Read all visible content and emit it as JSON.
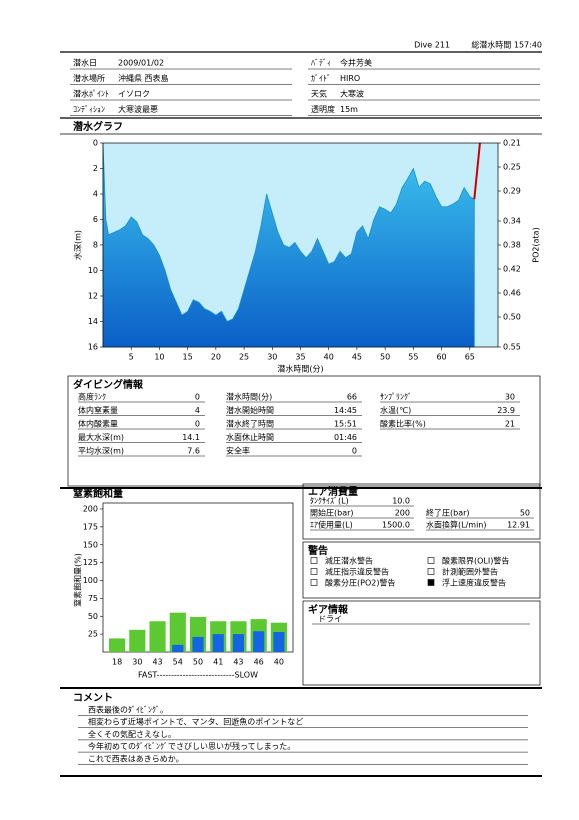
{
  "header": {
    "dive": "Dive 211",
    "total_time": "総潜水時間 157:40"
  },
  "info": {
    "rows": [
      [
        {
          "label": "潜水日",
          "value": "2009/01/02"
        },
        {
          "label": "ﾊﾞﾃﾞｨ",
          "value": "今井芳美"
        }
      ],
      [
        {
          "label": "潜水場所",
          "value": "沖縄県 西表島"
        },
        {
          "label": "ｶﾞｲﾄﾞ",
          "value": "HIRO"
        }
      ],
      [
        {
          "label": "潜水ﾎﾟｲﾝﾄ",
          "value": "イソロク"
        },
        {
          "label": "天気",
          "value": "大寒波"
        }
      ],
      [
        {
          "label": "ｺﾝﾃﾞｨｼｮﾝ",
          "value": "大寒波最悪"
        },
        {
          "label": "透明度",
          "value": "15m"
        }
      ]
    ]
  },
  "chart_data": [
    {
      "type": "area",
      "title": "潜水グラフ",
      "xlabel": "潜水時間(分)",
      "ylabel": "水深(m)",
      "y2label": "PO2(ata)",
      "xlim": [
        0,
        70
      ],
      "xticks": [
        5,
        10,
        15,
        20,
        25,
        30,
        35,
        40,
        45,
        50,
        55,
        60,
        65
      ],
      "ylim": [
        16,
        0
      ],
      "yticks": [
        0,
        2,
        4,
        6,
        8,
        10,
        12,
        14,
        16
      ],
      "y2lim": [
        0.55,
        0.21
      ],
      "y2ticks": [
        0.21,
        0.25,
        0.29,
        0.34,
        0.38,
        0.42,
        0.46,
        {
          "value": 0.5,
          "label": "0.50"
        },
        0.55
      ],
      "background": "#c6eefa",
      "series": [
        {
          "color": "#1a8fd0",
          "x": [
            0,
            0.5,
            1,
            2,
            3,
            4,
            5,
            6,
            7,
            8,
            9,
            10,
            11,
            12,
            13,
            14,
            15,
            16,
            17,
            18,
            19,
            20,
            21,
            22,
            23,
            24,
            25,
            26,
            27,
            28,
            29,
            30,
            31,
            32,
            33,
            34,
            35,
            36,
            37,
            38,
            39,
            40,
            41,
            42,
            43,
            44,
            45,
            46,
            47,
            48,
            49,
            50,
            51,
            52,
            53,
            54,
            55,
            56,
            57,
            58,
            59,
            60,
            61,
            62,
            63,
            64,
            65,
            65.8
          ],
          "values": [
            0,
            6,
            7.2,
            7.0,
            6.8,
            6.5,
            5.8,
            6.2,
            7.2,
            7.5,
            8,
            8.8,
            10,
            11.5,
            12.5,
            13.5,
            13.2,
            12.3,
            12.5,
            13,
            13.2,
            13.5,
            13.2,
            14,
            13.8,
            13,
            11.5,
            10,
            8.5,
            6.5,
            4,
            5.5,
            7,
            8,
            8.2,
            7.8,
            8.5,
            9,
            8.5,
            7.5,
            8.5,
            9.5,
            9.3,
            8.5,
            9,
            8.7,
            7,
            6.5,
            7.5,
            6,
            5,
            5.2,
            5.5,
            4.8,
            3.5,
            2.8,
            2,
            3.5,
            3,
            3.2,
            4.2,
            5,
            5,
            4.8,
            4.5,
            3.5,
            4.2,
            4.4
          ],
          "fill": true
        },
        {
          "color": "#cc0000",
          "x": [
            65.8,
            66.8
          ],
          "values": [
            4.4,
            0
          ],
          "fill": false
        }
      ]
    },
    {
      "type": "bar",
      "title": "窒素飽和量",
      "ylabel": "窒素飽和量(%)",
      "xlabel": "FAST---------------------------SLOW",
      "categories": [
        "18",
        "30",
        "43",
        "54",
        "50",
        "41",
        "43",
        "46",
        "40"
      ],
      "ylim": [
        0,
        200
      ],
      "yticks": [
        25,
        50,
        75,
        100,
        125,
        150,
        175,
        200
      ],
      "overlay": true,
      "series": [
        {
          "color": "#5cc832",
          "values": [
            19,
            31,
            43,
            55,
            49,
            43,
            43,
            46,
            41
          ]
        },
        {
          "color": "#1464e6",
          "values": [
            0,
            0,
            0,
            10,
            21,
            25,
            25,
            29,
            28
          ]
        }
      ]
    }
  ],
  "dive_info": {
    "title": "ダイビング情報",
    "columns": [
      [
        {
          "label": "高度ﾗﾝｸ",
          "value": "0"
        },
        {
          "label": "体内窒素量",
          "value": "4"
        },
        {
          "label": "体内酸素量",
          "value": "0"
        },
        {
          "label": "最大水深(m)",
          "value": "14.1"
        },
        {
          "label": "平均水深(m)",
          "value": "7.6"
        }
      ],
      [
        {
          "label": "潜水時間(分)",
          "value": "66"
        },
        {
          "label": "潜水開始時間",
          "value": "14:45"
        },
        {
          "label": "潜水終了時間",
          "value": "15:51"
        },
        {
          "label": "水面休止時間",
          "value": "01:46"
        },
        {
          "label": "安全率",
          "value": "0"
        }
      ],
      [
        {
          "label": "ｻﾝﾌﾟﾘﾝｸﾞ",
          "value": "30"
        },
        {
          "label": "水温(℃)",
          "value": "23.9"
        },
        {
          "label": "酸素比率(%)",
          "value": "21"
        }
      ]
    ]
  },
  "air": {
    "title": "エア消費量",
    "items": [
      {
        "label": "ﾀﾝｸｻｲｽﾞ(L)",
        "value": "10.0"
      },
      {
        "label": "開始圧(bar)",
        "value": "200"
      },
      {
        "label": "終了圧(bar)",
        "value": "50"
      },
      {
        "label": "ｴｱ使用量(L)",
        "value": "1500.0"
      },
      {
        "label": "水面換算(L/min)",
        "value": "12.91"
      }
    ]
  },
  "warnings": {
    "title": "警告",
    "items": [
      {
        "label": "減圧潜水警告",
        "checked": false
      },
      {
        "label": "減圧指示違反警告",
        "checked": false
      },
      {
        "label": "酸素分圧(PO2)警告",
        "checked": false
      },
      {
        "label": "酸素限界(OLI)警告",
        "checked": false
      },
      {
        "label": "計測範囲外警告",
        "checked": false
      },
      {
        "label": "浮上速度違反警告",
        "checked": true
      }
    ]
  },
  "gear": {
    "title": "ギア情報",
    "items": [
      "ドライ"
    ]
  },
  "comment": {
    "title": "コメント",
    "lines": [
      "西表最後のﾀﾞｲﾋﾞﾝｸﾞ。",
      "相変わらず近場ポイントで、マンタ、回遊魚のポイントなど",
      "全くその気配さえなし。",
      "今年初めてのﾀﾞｲﾋﾞﾝｸﾞでさびしい思いが残ってしまった。",
      "これで西表はあきらめか。"
    ]
  }
}
